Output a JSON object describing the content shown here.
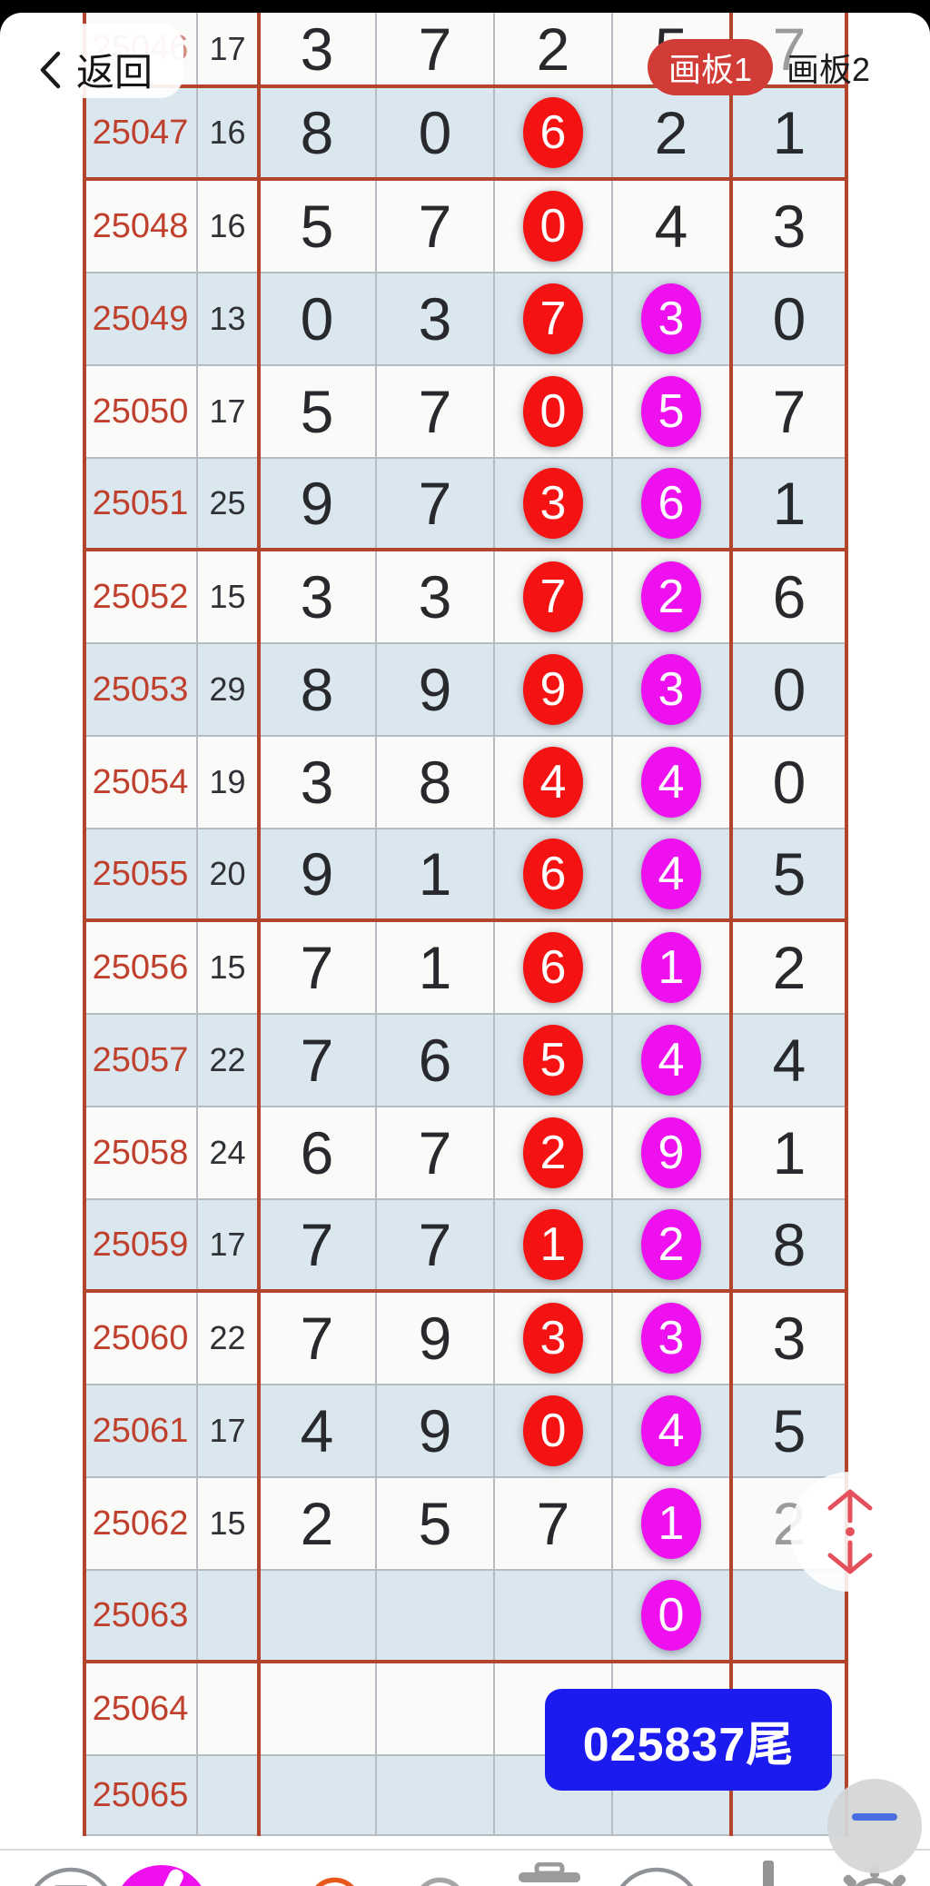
{
  "header": {
    "back_label": "返回",
    "boards": [
      {
        "label": "画板1",
        "active": true
      },
      {
        "label": "画板2",
        "active": false
      }
    ]
  },
  "colors": {
    "row_blue": "#dbe7ee",
    "row_white": "#fafaf8",
    "grid_gray": "#b7bcc2",
    "grid_red": "#b2452b",
    "period_red": "#c0402e",
    "circle_red": "#f51212",
    "circle_magenta": "#ee10ee",
    "active_board_pill": "#d23c36",
    "tail_badge_blue": "#1b1aef",
    "undo_orange": "#e8571c",
    "minus_blue": "#4a6ee0",
    "scroll_arrow_red": "#e4515c"
  },
  "table": {
    "rows": [
      {
        "period": "25046",
        "count": "17",
        "shade": "white",
        "group_end": true,
        "period_faded": true,
        "digits": [
          {
            "v": "3"
          },
          {
            "v": "7"
          },
          {
            "v": "2"
          },
          {
            "v": "5"
          },
          {
            "v": "7",
            "c": "dim"
          }
        ]
      },
      {
        "period": "25047",
        "count": "16",
        "shade": "blue",
        "group_end": true,
        "digits": [
          {
            "v": "8"
          },
          {
            "v": "0"
          },
          {
            "v": "6",
            "c": "r"
          },
          {
            "v": "2"
          },
          {
            "v": "1"
          }
        ]
      },
      {
        "period": "25048",
        "count": "16",
        "shade": "white",
        "group_end": false,
        "digits": [
          {
            "v": "5"
          },
          {
            "v": "7"
          },
          {
            "v": "0",
            "c": "r"
          },
          {
            "v": "4"
          },
          {
            "v": "3"
          }
        ]
      },
      {
        "period": "25049",
        "count": "13",
        "shade": "blue",
        "group_end": false,
        "digits": [
          {
            "v": "0"
          },
          {
            "v": "3"
          },
          {
            "v": "7",
            "c": "r"
          },
          {
            "v": "3",
            "c": "m"
          },
          {
            "v": "0"
          }
        ]
      },
      {
        "period": "25050",
        "count": "17",
        "shade": "white",
        "group_end": false,
        "digits": [
          {
            "v": "5"
          },
          {
            "v": "7"
          },
          {
            "v": "0",
            "c": "r"
          },
          {
            "v": "5",
            "c": "m"
          },
          {
            "v": "7"
          }
        ]
      },
      {
        "period": "25051",
        "count": "25",
        "shade": "blue",
        "group_end": true,
        "digits": [
          {
            "v": "9"
          },
          {
            "v": "7"
          },
          {
            "v": "3",
            "c": "r"
          },
          {
            "v": "6",
            "c": "m"
          },
          {
            "v": "1"
          }
        ]
      },
      {
        "period": "25052",
        "count": "15",
        "shade": "white",
        "group_end": false,
        "digits": [
          {
            "v": "3"
          },
          {
            "v": "3"
          },
          {
            "v": "7",
            "c": "r"
          },
          {
            "v": "2",
            "c": "m"
          },
          {
            "v": "6"
          }
        ]
      },
      {
        "period": "25053",
        "count": "29",
        "shade": "blue",
        "group_end": false,
        "digits": [
          {
            "v": "8"
          },
          {
            "v": "9"
          },
          {
            "v": "9",
            "c": "r"
          },
          {
            "v": "3",
            "c": "m"
          },
          {
            "v": "0"
          }
        ]
      },
      {
        "period": "25054",
        "count": "19",
        "shade": "white",
        "group_end": false,
        "digits": [
          {
            "v": "3"
          },
          {
            "v": "8"
          },
          {
            "v": "4",
            "c": "r"
          },
          {
            "v": "4",
            "c": "m"
          },
          {
            "v": "0"
          }
        ]
      },
      {
        "period": "25055",
        "count": "20",
        "shade": "blue",
        "group_end": true,
        "digits": [
          {
            "v": "9"
          },
          {
            "v": "1"
          },
          {
            "v": "6",
            "c": "r"
          },
          {
            "v": "4",
            "c": "m"
          },
          {
            "v": "5"
          }
        ]
      },
      {
        "period": "25056",
        "count": "15",
        "shade": "white",
        "group_end": false,
        "digits": [
          {
            "v": "7"
          },
          {
            "v": "1"
          },
          {
            "v": "6",
            "c": "r"
          },
          {
            "v": "1",
            "c": "m"
          },
          {
            "v": "2"
          }
        ]
      },
      {
        "period": "25057",
        "count": "22",
        "shade": "blue",
        "group_end": false,
        "digits": [
          {
            "v": "7"
          },
          {
            "v": "6"
          },
          {
            "v": "5",
            "c": "r"
          },
          {
            "v": "4",
            "c": "m"
          },
          {
            "v": "4"
          }
        ]
      },
      {
        "period": "25058",
        "count": "24",
        "shade": "white",
        "group_end": false,
        "digits": [
          {
            "v": "6"
          },
          {
            "v": "7"
          },
          {
            "v": "2",
            "c": "r"
          },
          {
            "v": "9",
            "c": "m"
          },
          {
            "v": "1"
          }
        ]
      },
      {
        "period": "25059",
        "count": "17",
        "shade": "blue",
        "group_end": true,
        "digits": [
          {
            "v": "7"
          },
          {
            "v": "7"
          },
          {
            "v": "1",
            "c": "r"
          },
          {
            "v": "2",
            "c": "m"
          },
          {
            "v": "8"
          }
        ]
      },
      {
        "period": "25060",
        "count": "22",
        "shade": "white",
        "group_end": false,
        "digits": [
          {
            "v": "7"
          },
          {
            "v": "9"
          },
          {
            "v": "3",
            "c": "r"
          },
          {
            "v": "3",
            "c": "m"
          },
          {
            "v": "3"
          }
        ]
      },
      {
        "period": "25061",
        "count": "17",
        "shade": "blue",
        "group_end": false,
        "digits": [
          {
            "v": "4"
          },
          {
            "v": "9"
          },
          {
            "v": "0",
            "c": "r"
          },
          {
            "v": "4",
            "c": "m"
          },
          {
            "v": "5"
          }
        ]
      },
      {
        "period": "25062",
        "count": "15",
        "shade": "white",
        "group_end": false,
        "digits": [
          {
            "v": "2"
          },
          {
            "v": "5"
          },
          {
            "v": "7"
          },
          {
            "v": "1",
            "c": "m"
          },
          {
            "v": "2",
            "c": "dim"
          }
        ]
      },
      {
        "period": "25063",
        "count": "",
        "shade": "blue",
        "group_end": true,
        "digits": [
          {
            "v": ""
          },
          {
            "v": ""
          },
          {
            "v": ""
          },
          {
            "v": "0",
            "c": "m"
          },
          {
            "v": ""
          }
        ]
      },
      {
        "period": "25064",
        "count": "",
        "shade": "white",
        "group_end": false,
        "digits": [
          {
            "v": ""
          },
          {
            "v": ""
          },
          {
            "v": ""
          },
          {
            "v": ""
          },
          {
            "v": ""
          }
        ]
      },
      {
        "period": "25065",
        "count": "",
        "shade": "blue",
        "group_end": false,
        "digits": [
          {
            "v": ""
          },
          {
            "v": ""
          },
          {
            "v": ""
          },
          {
            "v": ""
          },
          {
            "v": ""
          }
        ]
      }
    ]
  },
  "overlays": {
    "tail_badge": {
      "text": "025837尾"
    },
    "scroller": {
      "type": "vertical-scroll-handle"
    },
    "minus_button": {
      "type": "collapse"
    }
  },
  "toolbar": {
    "text_tool_label": "T",
    "letter_tool_label": "A",
    "items": [
      "text-tool",
      "pen-tool",
      "undo",
      "redo",
      "delete",
      "letter-a-tool",
      "download",
      "settings"
    ],
    "active_tool": "pen-tool"
  }
}
